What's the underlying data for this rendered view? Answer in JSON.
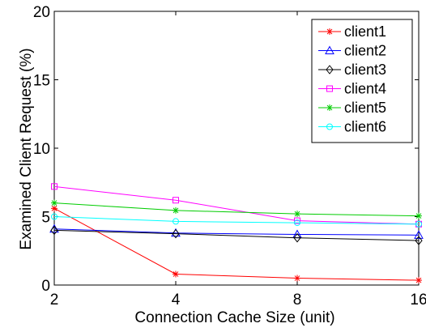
{
  "chart_data": {
    "type": "line",
    "xlabel": "Connection Cache Size (unit)",
    "ylabel": "Examined Client Request (%)",
    "x": [
      2,
      4,
      8,
      16
    ],
    "x_tick_labels": [
      "2",
      "4",
      "8",
      "16"
    ],
    "xscale": "log2",
    "ylim": [
      0,
      20
    ],
    "y_ticks": [
      0,
      5,
      10,
      15,
      20
    ],
    "y_tick_labels": [
      "0",
      "5",
      "10",
      "15",
      "20"
    ],
    "grid": false,
    "legend_position": "top-right",
    "series": [
      {
        "name": "client1",
        "color": "#ff0000",
        "marker": "asterisk",
        "values": [
          5.6,
          0.8,
          0.5,
          0.35
        ]
      },
      {
        "name": "client2",
        "color": "#0000ff",
        "marker": "triangle",
        "values": [
          4.1,
          3.8,
          3.7,
          3.65
        ]
      },
      {
        "name": "client3",
        "color": "#000000",
        "marker": "diamond",
        "values": [
          4.0,
          3.75,
          3.45,
          3.25
        ]
      },
      {
        "name": "client4",
        "color": "#ff00ff",
        "marker": "square",
        "values": [
          7.2,
          6.2,
          4.7,
          4.45
        ]
      },
      {
        "name": "client5",
        "color": "#00cc00",
        "marker": "star",
        "values": [
          6.0,
          5.45,
          5.2,
          5.05
        ]
      },
      {
        "name": "client6",
        "color": "#00ffff",
        "marker": "circle",
        "values": [
          5.0,
          4.65,
          4.55,
          4.45
        ]
      }
    ]
  }
}
